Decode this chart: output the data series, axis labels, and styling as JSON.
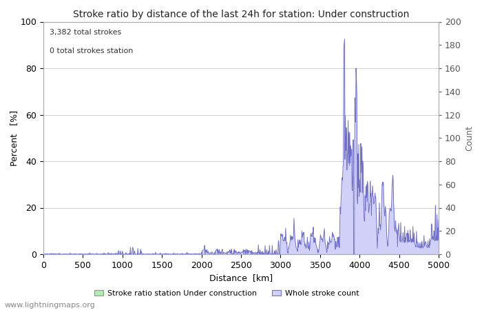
{
  "title": "Stroke ratio by distance of the last 24h for station: Under construction",
  "xlabel": "Distance  [km]",
  "ylabel_left": "Percent   [%]",
  "ylabel_right": "Count",
  "annotation_line1": "3,382 total strokes",
  "annotation_line2": "0 total strokes station",
  "xlim": [
    0,
    5000
  ],
  "ylim_left": [
    0,
    100
  ],
  "ylim_right": [
    0,
    200
  ],
  "legend_label_green": "Stroke ratio station Under construction",
  "legend_label_blue": "Whole stroke count",
  "fill_color_blue": "#d0d0f8",
  "line_color_blue": "#7070cc",
  "fill_color_green": "#b8e8b8",
  "line_color_green": "#70aa70",
  "watermark": "www.lightningmaps.org",
  "bg_color": "#ffffff",
  "grid_color": "#c8c8c8",
  "title_fontsize": 10,
  "axis_label_fontsize": 9,
  "tick_fontsize": 9,
  "annotation_fontsize": 8,
  "legend_fontsize": 8,
  "watermark_fontsize": 8
}
